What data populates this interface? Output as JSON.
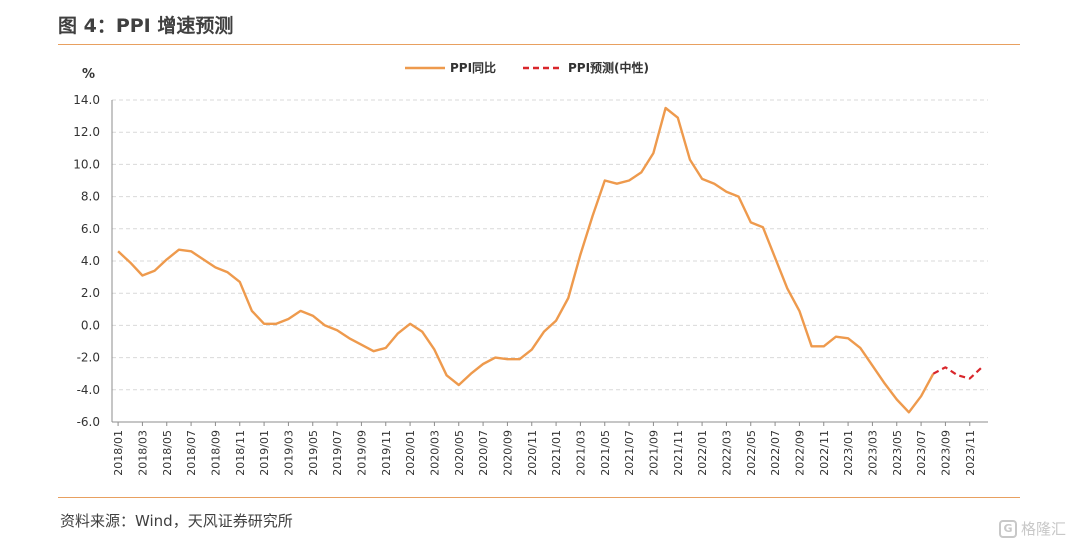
{
  "title": "图 4：PPI 增速预测",
  "source": "资料来源：Wind，天风证券研究所",
  "watermark": "格隆汇",
  "colors": {
    "actual": "#EE9A4D",
    "forecast": "#D9262B",
    "rule": "#E8A060",
    "grid": "#D9D9D9"
  },
  "chart_data": {
    "type": "line",
    "ylabel": "%",
    "ylim": [
      -6.0,
      14.0
    ],
    "yticks": [
      "14.0",
      "12.0",
      "10.0",
      "8.0",
      "6.0",
      "4.0",
      "2.0",
      "0.0",
      "-2.0",
      "-4.0",
      "-6.0"
    ],
    "grid": "horizontal-dashed",
    "legend_position": "top-center",
    "xticks": [
      "2018/01",
      "2018/03",
      "2018/05",
      "2018/07",
      "2018/09",
      "2018/11",
      "2019/01",
      "2019/03",
      "2019/05",
      "2019/07",
      "2019/09",
      "2019/11",
      "2020/01",
      "2020/03",
      "2020/05",
      "2020/07",
      "2020/09",
      "2020/11",
      "2021/01",
      "2021/03",
      "2021/05",
      "2021/07",
      "2021/09",
      "2021/11",
      "2022/01",
      "2022/03",
      "2022/05",
      "2022/07",
      "2022/09",
      "2022/11",
      "2023/01",
      "2023/03",
      "2023/05",
      "2023/07",
      "2023/09",
      "2023/11"
    ],
    "series": [
      {
        "name": "PPI同比",
        "style": "solid",
        "x": [
          "2018/01",
          "2018/02",
          "2018/03",
          "2018/04",
          "2018/05",
          "2018/06",
          "2018/07",
          "2018/08",
          "2018/09",
          "2018/10",
          "2018/11",
          "2018/12",
          "2019/01",
          "2019/02",
          "2019/03",
          "2019/04",
          "2019/05",
          "2019/06",
          "2019/07",
          "2019/08",
          "2019/09",
          "2019/10",
          "2019/11",
          "2019/12",
          "2020/01",
          "2020/02",
          "2020/03",
          "2020/04",
          "2020/05",
          "2020/06",
          "2020/07",
          "2020/08",
          "2020/09",
          "2020/10",
          "2020/11",
          "2020/12",
          "2021/01",
          "2021/02",
          "2021/03",
          "2021/04",
          "2021/05",
          "2021/06",
          "2021/07",
          "2021/08",
          "2021/09",
          "2021/10",
          "2021/11",
          "2021/12",
          "2022/01",
          "2022/02",
          "2022/03",
          "2022/04",
          "2022/05",
          "2022/06",
          "2022/07",
          "2022/08",
          "2022/09",
          "2022/10",
          "2022/11",
          "2022/12",
          "2023/01",
          "2023/02",
          "2023/03",
          "2023/04",
          "2023/05",
          "2023/06",
          "2023/07",
          "2023/08"
        ],
        "values": [
          4.6,
          3.9,
          3.1,
          3.4,
          4.1,
          4.7,
          4.6,
          4.1,
          3.6,
          3.3,
          2.7,
          0.9,
          0.1,
          0.1,
          0.4,
          0.9,
          0.6,
          0.0,
          -0.3,
          -0.8,
          -1.2,
          -1.6,
          -1.4,
          -0.5,
          0.1,
          -0.4,
          -1.5,
          -3.1,
          -3.7,
          -3.0,
          -2.4,
          -2.0,
          -2.1,
          -2.1,
          -1.5,
          -0.4,
          0.3,
          1.7,
          4.4,
          6.8,
          9.0,
          8.8,
          9.0,
          9.5,
          10.7,
          13.5,
          12.9,
          10.3,
          9.1,
          8.8,
          8.3,
          8.0,
          6.4,
          6.1,
          4.2,
          2.3,
          0.9,
          -1.3,
          -1.3,
          -0.7,
          -0.8,
          -1.4,
          -2.5,
          -3.6,
          -4.6,
          -5.4,
          -4.4,
          -3.0
        ]
      },
      {
        "name": "PPI预测(中性)",
        "style": "dashed",
        "x": [
          "2023/08",
          "2023/09",
          "2023/10",
          "2023/11",
          "2023/12"
        ],
        "values": [
          -3.0,
          -2.6,
          -3.1,
          -3.3,
          -2.6
        ]
      }
    ]
  }
}
